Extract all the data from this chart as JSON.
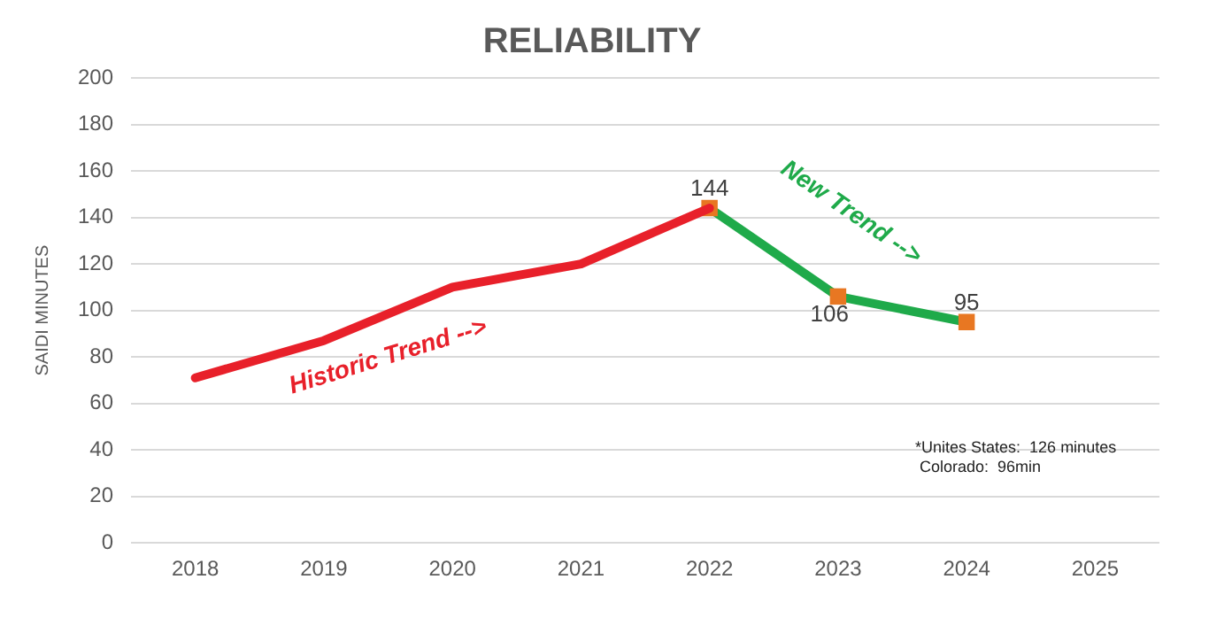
{
  "chart_data": {
    "type": "line",
    "title": "RELIABILITY",
    "ylabel": "SAIDI MINUTES",
    "categories": [
      "2018",
      "2019",
      "2020",
      "2021",
      "2022",
      "2023",
      "2024",
      "2025"
    ],
    "series": [
      {
        "color": "#e8202a",
        "values": [
          71,
          87,
          110,
          120,
          144,
          null,
          null,
          null
        ]
      },
      {
        "color": "#1faa4a",
        "values": [
          null,
          null,
          null,
          null,
          144,
          106,
          95,
          null
        ],
        "marker": "square",
        "value_labels": [
          null,
          null,
          null,
          null,
          "144",
          "106",
          "95",
          null
        ]
      }
    ],
    "ylim": [
      0,
      200
    ],
    "yticks": [
      0,
      20,
      40,
      60,
      80,
      100,
      120,
      140,
      160,
      180,
      200
    ],
    "grid": "y",
    "legend": false,
    "annotations": [
      "Historic Trend -->",
      "New Trend -->",
      "*Unites States:  126 minutes\n Colorado:  96min"
    ]
  }
}
